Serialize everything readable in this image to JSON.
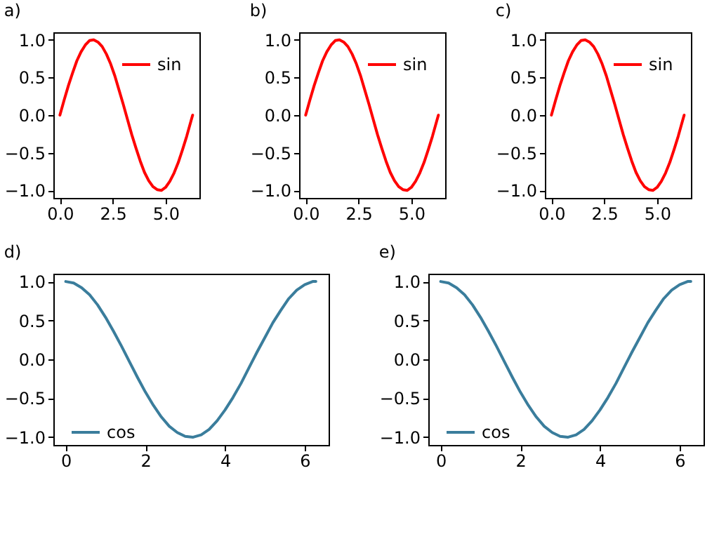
{
  "chart_data": [
    {
      "type": "line",
      "title": "a)",
      "x": [
        0,
        0.2,
        0.4,
        0.6,
        0.8,
        1.0,
        1.2,
        1.4,
        1.6,
        1.8,
        2.0,
        2.2,
        2.4,
        2.6,
        2.8,
        3.0,
        3.2,
        3.4,
        3.6,
        3.8,
        4.0,
        4.2,
        4.4,
        4.6,
        4.8,
        5.0,
        5.2,
        5.4,
        5.6,
        5.8,
        6.0,
        6.2,
        6.28
      ],
      "series": [
        {
          "name": "sin",
          "color": "#ff0000",
          "values": [
            0,
            0.2,
            0.39,
            0.56,
            0.72,
            0.84,
            0.93,
            0.99,
            1.0,
            0.97,
            0.91,
            0.81,
            0.68,
            0.52,
            0.33,
            0.14,
            -0.06,
            -0.26,
            -0.44,
            -0.61,
            -0.76,
            -0.87,
            -0.95,
            -0.99,
            -1.0,
            -0.96,
            -0.88,
            -0.77,
            -0.63,
            -0.46,
            -0.28,
            -0.08,
            0.0
          ]
        }
      ],
      "xlim": [
        -0.31,
        6.6
      ],
      "ylim": [
        -1.1,
        1.1
      ],
      "xticks": [
        {
          "value": 0,
          "label": "0.0"
        },
        {
          "value": 2.5,
          "label": "2.5"
        },
        {
          "value": 5,
          "label": "5.0"
        }
      ],
      "yticks": [
        {
          "value": -1,
          "label": "−1.0"
        },
        {
          "value": -0.5,
          "label": "−0.5"
        },
        {
          "value": 0,
          "label": "0.0"
        },
        {
          "value": 0.5,
          "label": "0.5"
        },
        {
          "value": 1,
          "label": "1.0"
        }
      ],
      "grid": false,
      "legend": "top right",
      "marker": "none",
      "line_style": "solid"
    },
    {
      "type": "line",
      "title": "b)",
      "x": [
        0,
        0.2,
        0.4,
        0.6,
        0.8,
        1.0,
        1.2,
        1.4,
        1.6,
        1.8,
        2.0,
        2.2,
        2.4,
        2.6,
        2.8,
        3.0,
        3.2,
        3.4,
        3.6,
        3.8,
        4.0,
        4.2,
        4.4,
        4.6,
        4.8,
        5.0,
        5.2,
        5.4,
        5.6,
        5.8,
        6.0,
        6.2,
        6.28
      ],
      "series": [
        {
          "name": "sin",
          "color": "#ff0000",
          "values": [
            0,
            0.2,
            0.39,
            0.56,
            0.72,
            0.84,
            0.93,
            0.99,
            1.0,
            0.97,
            0.91,
            0.81,
            0.68,
            0.52,
            0.33,
            0.14,
            -0.06,
            -0.26,
            -0.44,
            -0.61,
            -0.76,
            -0.87,
            -0.95,
            -0.99,
            -1.0,
            -0.96,
            -0.88,
            -0.77,
            -0.63,
            -0.46,
            -0.28,
            -0.08,
            0.0
          ]
        }
      ],
      "xlim": [
        -0.31,
        6.6
      ],
      "ylim": [
        -1.1,
        1.1
      ],
      "xticks": [
        {
          "value": 0,
          "label": "0.0"
        },
        {
          "value": 2.5,
          "label": "2.5"
        },
        {
          "value": 5,
          "label": "5.0"
        }
      ],
      "yticks": [
        {
          "value": -1,
          "label": "−1.0"
        },
        {
          "value": -0.5,
          "label": "−0.5"
        },
        {
          "value": 0,
          "label": "0.0"
        },
        {
          "value": 0.5,
          "label": "0.5"
        },
        {
          "value": 1,
          "label": "1.0"
        }
      ],
      "grid": false,
      "legend": "top right",
      "marker": "none",
      "line_style": "solid"
    },
    {
      "type": "line",
      "title": "c)",
      "x": [
        0,
        0.2,
        0.4,
        0.6,
        0.8,
        1.0,
        1.2,
        1.4,
        1.6,
        1.8,
        2.0,
        2.2,
        2.4,
        2.6,
        2.8,
        3.0,
        3.2,
        3.4,
        3.6,
        3.8,
        4.0,
        4.2,
        4.4,
        4.6,
        4.8,
        5.0,
        5.2,
        5.4,
        5.6,
        5.8,
        6.0,
        6.2,
        6.28
      ],
      "series": [
        {
          "name": "sin",
          "color": "#ff0000",
          "values": [
            0,
            0.2,
            0.39,
            0.56,
            0.72,
            0.84,
            0.93,
            0.99,
            1.0,
            0.97,
            0.91,
            0.81,
            0.68,
            0.52,
            0.33,
            0.14,
            -0.06,
            -0.26,
            -0.44,
            -0.61,
            -0.76,
            -0.87,
            -0.95,
            -0.99,
            -1.0,
            -0.96,
            -0.88,
            -0.77,
            -0.63,
            -0.46,
            -0.28,
            -0.08,
            0.0
          ]
        }
      ],
      "xlim": [
        -0.31,
        6.6
      ],
      "ylim": [
        -1.1,
        1.1
      ],
      "xticks": [
        {
          "value": 0,
          "label": "0.0"
        },
        {
          "value": 2.5,
          "label": "2.5"
        },
        {
          "value": 5,
          "label": "5.0"
        }
      ],
      "yticks": [
        {
          "value": -1,
          "label": "−1.0"
        },
        {
          "value": -0.5,
          "label": "−0.5"
        },
        {
          "value": 0,
          "label": "0.0"
        },
        {
          "value": 0.5,
          "label": "0.5"
        },
        {
          "value": 1,
          "label": "1.0"
        }
      ],
      "grid": false,
      "legend": "top right",
      "marker": "none",
      "line_style": "solid"
    },
    {
      "type": "line",
      "title": "d)",
      "x": [
        0,
        0.2,
        0.4,
        0.6,
        0.8,
        1.0,
        1.2,
        1.4,
        1.6,
        1.8,
        2.0,
        2.2,
        2.4,
        2.6,
        2.8,
        3.0,
        3.2,
        3.4,
        3.6,
        3.8,
        4.0,
        4.2,
        4.4,
        4.6,
        4.8,
        5.0,
        5.2,
        5.4,
        5.6,
        5.8,
        6.0,
        6.2,
        6.28
      ],
      "series": [
        {
          "name": "cos",
          "color": "#3a7d9c",
          "values": [
            1.0,
            0.98,
            0.92,
            0.83,
            0.7,
            0.54,
            0.36,
            0.17,
            -0.03,
            -0.23,
            -0.42,
            -0.59,
            -0.74,
            -0.86,
            -0.94,
            -0.99,
            -1.0,
            -0.97,
            -0.9,
            -0.79,
            -0.65,
            -0.49,
            -0.31,
            -0.11,
            0.09,
            0.28,
            0.47,
            0.63,
            0.78,
            0.89,
            0.96,
            1.0,
            1.0
          ]
        }
      ],
      "xlim": [
        -0.31,
        6.6
      ],
      "ylim": [
        -1.1,
        1.1
      ],
      "xticks": [
        0,
        2,
        4,
        6
      ],
      "yticks": [
        {
          "value": -1,
          "label": "−1.0"
        },
        {
          "value": -0.5,
          "label": "−0.5"
        },
        {
          "value": 0,
          "label": "0.0"
        },
        {
          "value": 0.5,
          "label": "0.5"
        },
        {
          "value": 1,
          "label": "1.0"
        }
      ],
      "grid": false,
      "legend": "bottom left",
      "marker": "none",
      "line_style": "solid"
    },
    {
      "type": "line",
      "title": "e)",
      "x": [
        0,
        0.2,
        0.4,
        0.6,
        0.8,
        1.0,
        1.2,
        1.4,
        1.6,
        1.8,
        2.0,
        2.2,
        2.4,
        2.6,
        2.8,
        3.0,
        3.2,
        3.4,
        3.6,
        3.8,
        4.0,
        4.2,
        4.4,
        4.6,
        4.8,
        5.0,
        5.2,
        5.4,
        5.6,
        5.8,
        6.0,
        6.2,
        6.28
      ],
      "series": [
        {
          "name": "cos",
          "color": "#3a7d9c",
          "values": [
            1.0,
            0.98,
            0.92,
            0.83,
            0.7,
            0.54,
            0.36,
            0.17,
            -0.03,
            -0.23,
            -0.42,
            -0.59,
            -0.74,
            -0.86,
            -0.94,
            -0.99,
            -1.0,
            -0.97,
            -0.9,
            -0.79,
            -0.65,
            -0.49,
            -0.31,
            -0.11,
            0.09,
            0.28,
            0.47,
            0.63,
            0.78,
            0.89,
            0.96,
            1.0,
            1.0
          ]
        }
      ],
      "xlim": [
        -0.31,
        6.6
      ],
      "ylim": [
        -1.1,
        1.1
      ],
      "xticks": [
        0,
        2,
        4,
        6
      ],
      "yticks": [
        {
          "value": -1,
          "label": "−1.0"
        },
        {
          "value": -0.5,
          "label": "−0.5"
        },
        {
          "value": 0,
          "label": "0.0"
        },
        {
          "value": 0.5,
          "label": "0.5"
        },
        {
          "value": 1,
          "label": "1.0"
        }
      ],
      "grid": false,
      "legend": "bottom left",
      "marker": "none",
      "line_style": "solid"
    }
  ]
}
